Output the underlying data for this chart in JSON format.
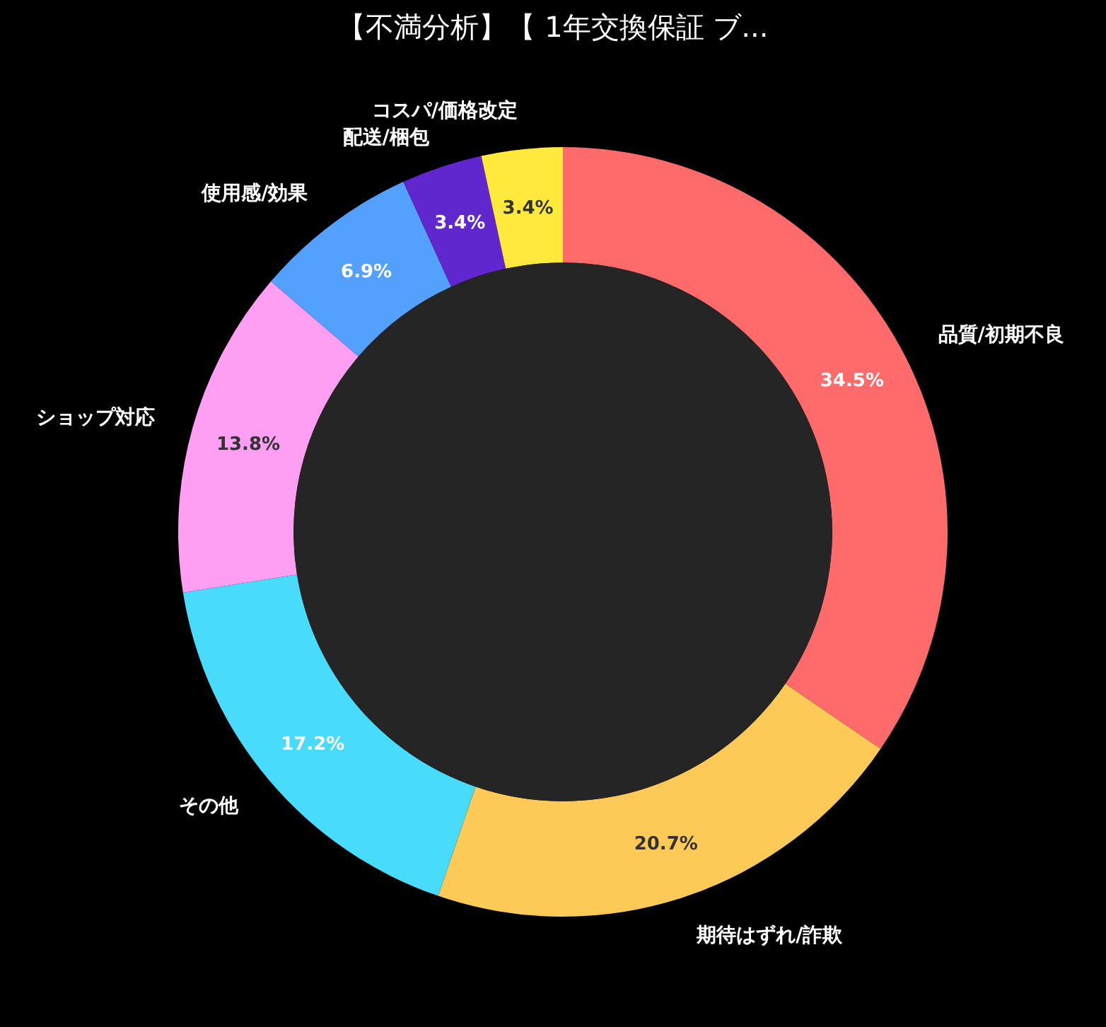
{
  "chart_data": {
    "type": "donut",
    "title": "【不満分析】【 1年交換保証 ブ...",
    "categories": [
      "品質/初期不良",
      "期待はずれ/詐欺",
      "その他",
      "ショップ対応",
      "使用感/効果",
      "配送/梱包",
      "コスパ/価格改定"
    ],
    "values": [
      34.5,
      20.7,
      17.2,
      13.8,
      6.9,
      3.4,
      3.4
    ],
    "colors": [
      "#ff6b6b",
      "#feca57",
      "#48dbfb",
      "#ff9ff3",
      "#54a0ff",
      "#5f27cd",
      "#ffe93d"
    ],
    "value_labels": [
      "34.5%",
      "20.7%",
      "17.2%",
      "13.8%",
      "6.9%",
      "3.4%",
      "3.4%"
    ]
  }
}
